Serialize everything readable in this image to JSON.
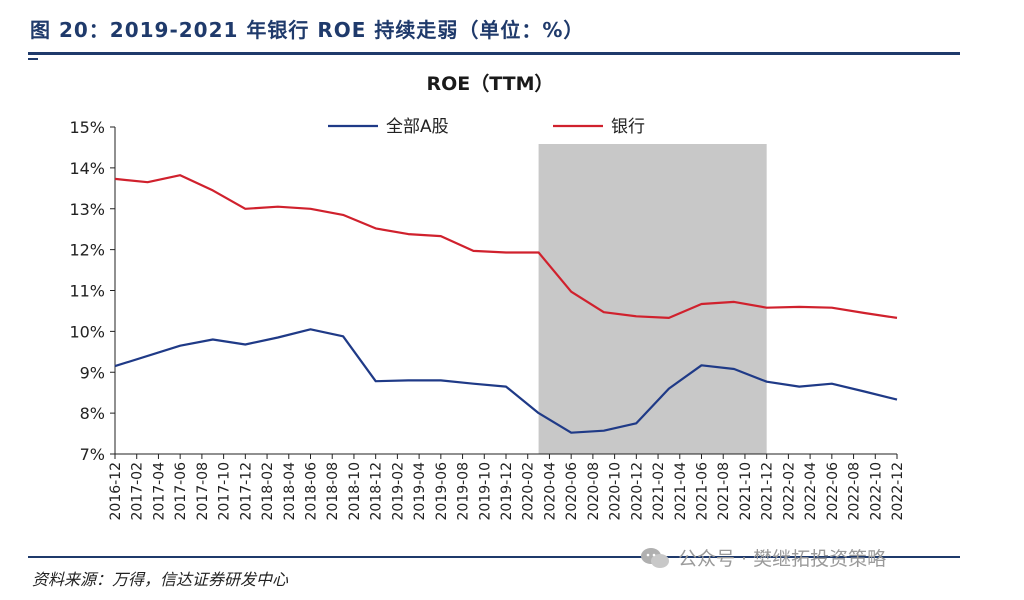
{
  "figure": {
    "title": "图 20：2019-2021 年银行 ROE 持续走弱（单位：%）",
    "source": "资料来源：万得，信达证券研发中心",
    "watermark": "公众号 · 樊继拓投资策略"
  },
  "chart_data": {
    "type": "line",
    "title": "ROE（TTM）",
    "xlabel": "",
    "ylabel": "",
    "ylim": [
      7,
      15
    ],
    "yticks": [
      "15%",
      "14%",
      "13%",
      "12%",
      "11%",
      "10%",
      "9%",
      "8%",
      "7%"
    ],
    "legend_position": "top",
    "shaded_region": [
      "2020-03",
      "2021-12"
    ],
    "categories": [
      "2016-12",
      "2017-02",
      "2017-04",
      "2017-06",
      "2017-08",
      "2017-10",
      "2017-12",
      "2018-02",
      "2018-04",
      "2018-06",
      "2018-08",
      "2018-10",
      "2018-12",
      "2019-02",
      "2019-04",
      "2019-06",
      "2019-08",
      "2019-10",
      "2019-12",
      "2020-02",
      "2020-04",
      "2020-06",
      "2020-08",
      "2020-10",
      "2020-12",
      "2021-02",
      "2021-04",
      "2021-06",
      "2021-08",
      "2021-10",
      "2021-12",
      "2022-02",
      "2022-04",
      "2022-06",
      "2022-08",
      "2022-10",
      "2022-12"
    ],
    "x_tick_labels": [
      "2016-12",
      "2017-02",
      "2017-04",
      "2017-06",
      "2017-08",
      "2017-10",
      "2017-12",
      "2018-02",
      "2018-04",
      "2018-06",
      "2018-08",
      "2018-10",
      "2018-12",
      "2019-02",
      "2019-04",
      "2019-06",
      "2019-08",
      "2019-10",
      "2019-12",
      "2020-02",
      "2020-04",
      "2020-06",
      "2020-08",
      "2020-10",
      "2020-12",
      "2021-02",
      "2021-04",
      "2021-06",
      "2021-08",
      "2021-10",
      "2021-12",
      "2022-02",
      "2022-04",
      "2022-06",
      "2022-08",
      "2022-10",
      "2022-12"
    ],
    "series": [
      {
        "name": "全部A股",
        "color": "#1f3a87",
        "points": [
          [
            "2016-12",
            9.15
          ],
          [
            "2017-06",
            9.65
          ],
          [
            "2017-09",
            9.8
          ],
          [
            "2017-12",
            9.68
          ],
          [
            "2018-03",
            9.85
          ],
          [
            "2018-06",
            10.05
          ],
          [
            "2018-09",
            9.88
          ],
          [
            "2018-12",
            8.78
          ],
          [
            "2019-03",
            8.8
          ],
          [
            "2019-06",
            8.8
          ],
          [
            "2019-09",
            8.72
          ],
          [
            "2019-12",
            8.65
          ],
          [
            "2020-03",
            8.0
          ],
          [
            "2020-06",
            7.52
          ],
          [
            "2020-09",
            7.57
          ],
          [
            "2020-12",
            7.75
          ],
          [
            "2021-03",
            8.6
          ],
          [
            "2021-06",
            9.17
          ],
          [
            "2021-09",
            9.08
          ],
          [
            "2021-12",
            8.77
          ],
          [
            "2022-03",
            8.65
          ],
          [
            "2022-06",
            8.72
          ],
          [
            "2022-09",
            8.53
          ],
          [
            "2022-12",
            8.33
          ]
        ]
      },
      {
        "name": "银行",
        "color": "#d0212d",
        "points": [
          [
            "2016-12",
            13.73
          ],
          [
            "2017-03",
            13.65
          ],
          [
            "2017-06",
            13.82
          ],
          [
            "2017-09",
            13.45
          ],
          [
            "2017-12",
            13.0
          ],
          [
            "2018-03",
            13.05
          ],
          [
            "2018-06",
            13.0
          ],
          [
            "2018-09",
            12.85
          ],
          [
            "2018-12",
            12.52
          ],
          [
            "2019-03",
            12.38
          ],
          [
            "2019-06",
            12.33
          ],
          [
            "2019-09",
            11.97
          ],
          [
            "2019-12",
            11.93
          ],
          [
            "2020-03",
            11.93
          ],
          [
            "2020-06",
            10.97
          ],
          [
            "2020-09",
            10.47
          ],
          [
            "2020-12",
            10.37
          ],
          [
            "2021-03",
            10.33
          ],
          [
            "2021-06",
            10.67
          ],
          [
            "2021-09",
            10.72
          ],
          [
            "2021-12",
            10.58
          ],
          [
            "2022-03",
            10.6
          ],
          [
            "2022-06",
            10.58
          ],
          [
            "2022-09",
            10.45
          ],
          [
            "2022-12",
            10.33
          ]
        ]
      }
    ]
  }
}
